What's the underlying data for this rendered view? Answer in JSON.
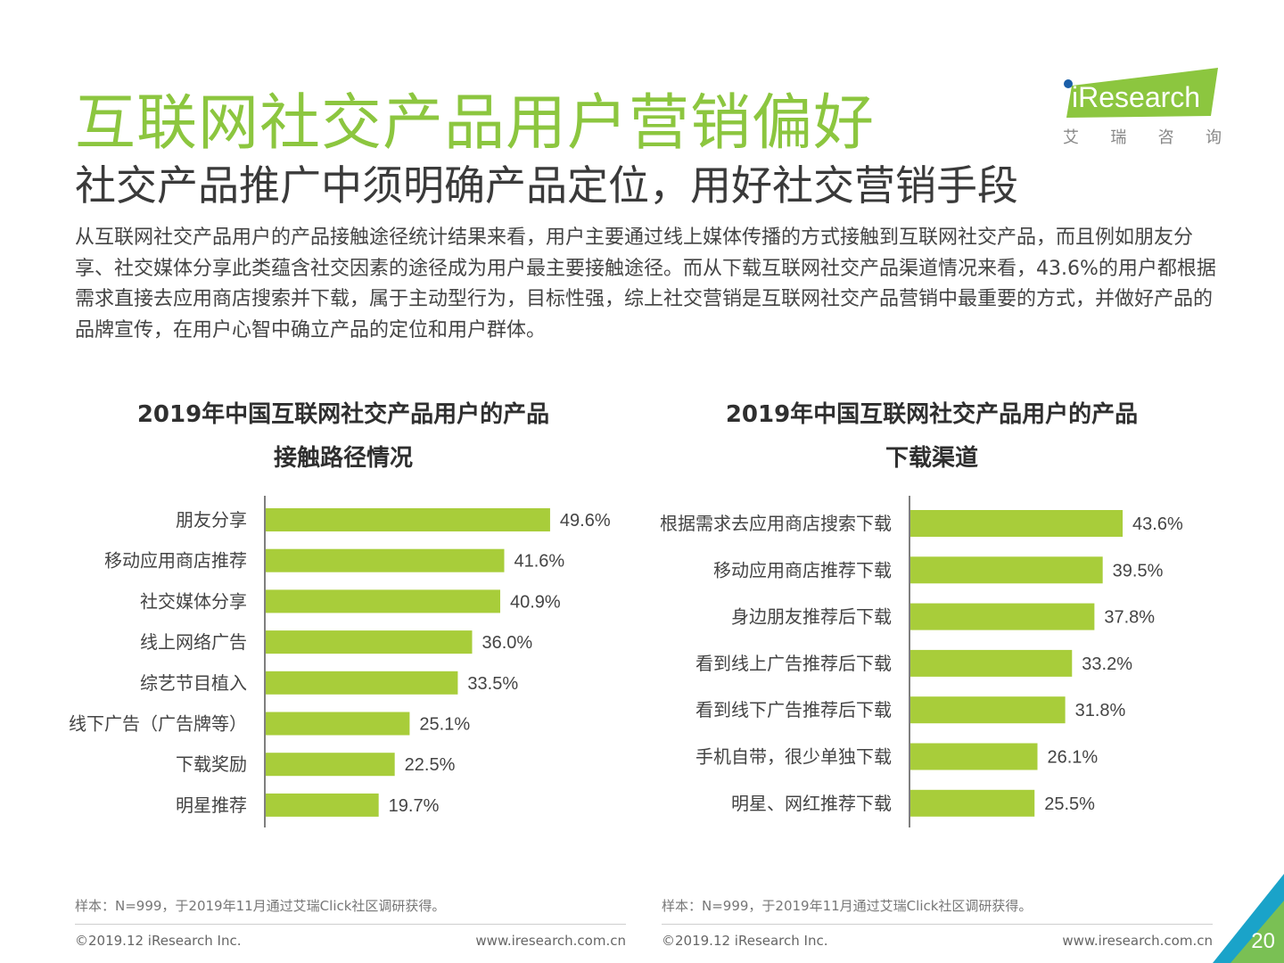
{
  "header": {
    "title": "互联网社交产品用户营销偏好",
    "subtitle": "社交产品推广中须明确产品定位，用好社交营销手段",
    "paragraph": "从互联网社交产品用户的产品接触途径统计结果来看，用户主要通过线上媒体传播的方式接触到互联网社交产品，而且例如朋友分享、社交媒体分享此类蕴含社交因素的途径成为用户最主要接触途径。而从下载互联网社交产品渠道情况来看，43.6%的用户都根据需求直接去应用商店搜索并下载，属于主动型行为，目标性强，综上社交营销是互联网社交产品营销中最重要的方式，并做好产品的品牌宣传，在用户心智中确立产品的定位和用户群体。"
  },
  "logo": {
    "brand": "iResearch",
    "tagline": [
      "艾",
      "瑞",
      "咨",
      "询"
    ]
  },
  "colors": {
    "accent": "#8cc63f",
    "bar": "#a8cd3a",
    "axis": "#555555",
    "corner_dark": "#1aa3c9",
    "corner_light": "#8cc63f"
  },
  "chart_data": [
    {
      "type": "bar",
      "orientation": "horizontal",
      "title_line1": "2019年中国互联网社交产品用户的产品",
      "title_line2": "接触路径情况",
      "categories": [
        "朋友分享",
        "移动应用商店推荐",
        "社交媒体分享",
        "线上网络广告",
        "综艺节目植入",
        "线下广告（广告牌等）",
        "下载奖励",
        "明星推荐"
      ],
      "values": [
        49.6,
        41.6,
        40.9,
        36.0,
        33.5,
        25.1,
        22.5,
        19.7
      ],
      "labels": [
        "49.6%",
        "41.6%",
        "40.9%",
        "36.0%",
        "33.5%",
        "25.1%",
        "22.5%",
        "19.7%"
      ],
      "unit": "%",
      "xlim": [
        0,
        60
      ],
      "note": "样本：N=999，于2019年11月通过艾瑞Click社区调研获得。"
    },
    {
      "type": "bar",
      "orientation": "horizontal",
      "title_line1": "2019年中国互联网社交产品用户的产品",
      "title_line2": "下载渠道",
      "categories": [
        "根据需求去应用商店搜索下载",
        "移动应用商店推荐下载",
        "身边朋友推荐后下载",
        "看到线上广告推荐后下载",
        "看到线下广告推荐后下载",
        "手机自带，很少单独下载",
        "明星、网红推荐下载"
      ],
      "values": [
        43.6,
        39.5,
        37.8,
        33.2,
        31.8,
        26.1,
        25.5
      ],
      "labels": [
        "43.6%",
        "39.5%",
        "37.8%",
        "33.2%",
        "31.8%",
        "26.1%",
        "25.5%"
      ],
      "unit": "%",
      "xlim": [
        0,
        60
      ],
      "note": "样本：N=999，于2019年11月通过艾瑞Click社区调研获得。"
    }
  ],
  "footer": {
    "copyright": "©2019.12 iResearch Inc.",
    "website": "www.iresearch.com.cn",
    "page_number": "20"
  }
}
